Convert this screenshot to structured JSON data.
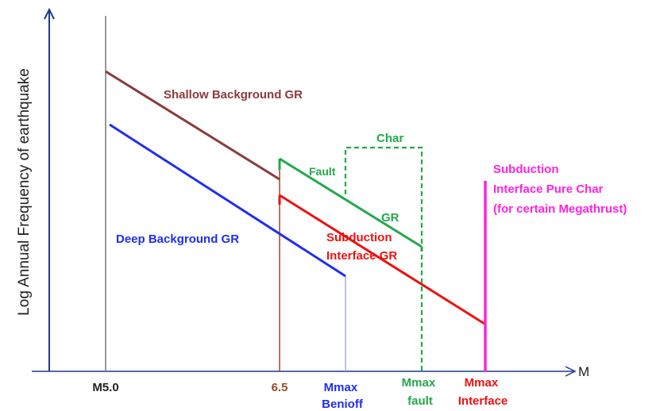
{
  "axes": {
    "ylabel": "Log Annual Frequency of earthquake",
    "xlabel": "M",
    "ticks": {
      "m50": "M5.0",
      "m65": "6.5",
      "benioff": [
        "Mmax",
        "Benioff"
      ],
      "fault": [
        "Mmax",
        "fault"
      ],
      "interface": [
        "Mmax",
        "Interface"
      ]
    }
  },
  "labels": {
    "shallow": "Shallow Background GR",
    "deep": "Deep Background GR",
    "fault": "Fault",
    "char": "Char",
    "gr": "GR",
    "subduction_gr": [
      "Subduction",
      "Interface GR"
    ],
    "pure_char": [
      "Subduction",
      "Interface Pure Char",
      "(for certain Megathrust)"
    ]
  },
  "colors": {
    "axis": "#1f3a8a",
    "shallow": "#8b3a3a",
    "deep": "#1f2ef0",
    "fault": "#22a84a",
    "subduction": "#ee1111",
    "pure_char": "#ff22dd",
    "tick_black": "#222222",
    "tick_brown": "#9a4a2a",
    "guide_grey": "#777777",
    "guide_blue": "#9aaee0"
  }
}
